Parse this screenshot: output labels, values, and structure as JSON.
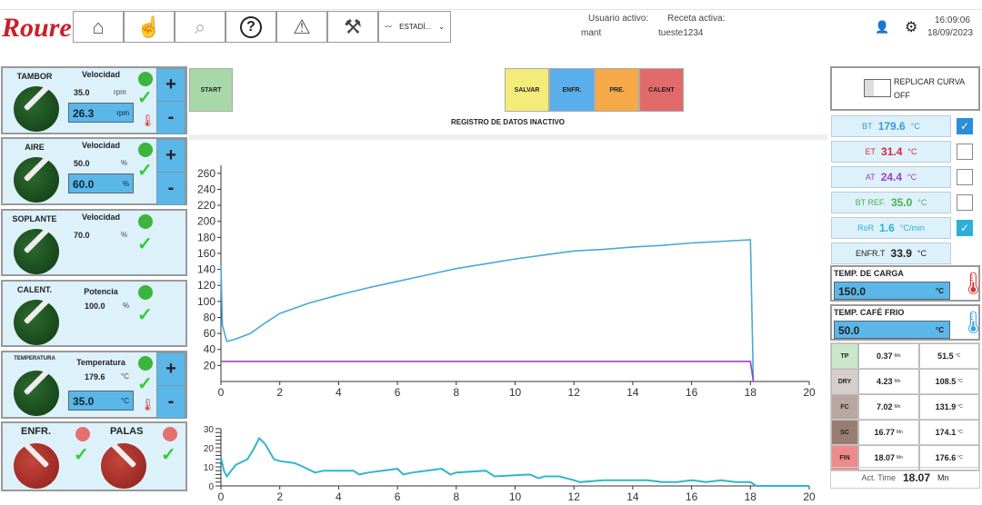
{
  "header": {
    "logo": "Roure",
    "dropdown": "ESTADÍ...",
    "user_label": "Usuario activo:",
    "user": "mant",
    "recipe_label": "Receta activa:",
    "recipe": "tueste1234",
    "time": "16:09:06",
    "date": "18/09/2023"
  },
  "panels": [
    {
      "name": "TAMBOR",
      "title": "Velocidad",
      "value": "35.0",
      "unit": "rpm",
      "setpoint": "26.3",
      "set_unit": "rpm"
    },
    {
      "name": "AIRE",
      "title": "Velocidad",
      "value": "50.0",
      "unit": "%",
      "setpoint": "60.0",
      "set_unit": "%"
    },
    {
      "name": "SOPLANTE",
      "title": "Velocidad",
      "value": "70.0",
      "unit": "%"
    },
    {
      "name": "CALENT.",
      "title": "Potencia",
      "value": "100.0",
      "unit": "%"
    },
    {
      "name": "TEMPERATURA",
      "title": "Temperatura",
      "value": "179.6",
      "unit": "°C",
      "setpoint": "35.0",
      "set_unit": "°C"
    }
  ],
  "bottom_panel": {
    "enfr": "ENFR.",
    "palas": "PALAS"
  },
  "plus": "+",
  "minus": "-",
  "controls": {
    "start": "START",
    "salvar": "SALVAR",
    "enfr": "ENFR.",
    "pre": "PRE.",
    "calent": "CALENT"
  },
  "status": "REGISTRO DE DATOS INACTIVO",
  "replicar": {
    "label": "REPLICAR CURVA",
    "state": "OFF"
  },
  "readings": [
    {
      "label": "BT",
      "value": "179.6",
      "unit": "°C",
      "color": "#3a9ad9",
      "checked": true
    },
    {
      "label": "ET",
      "value": "31.4",
      "unit": "°C",
      "color": "#d8283c",
      "checked": false
    },
    {
      "label": "AT",
      "value": "24.4",
      "unit": "°C",
      "color": "#9b3fc0",
      "checked": false
    },
    {
      "label": "BT REF.",
      "value": "35.0",
      "unit": "°C",
      "color": "#4caf50",
      "checked": false
    },
    {
      "label": "RoR",
      "value": "1.6",
      "unit": "°C/min",
      "color": "#2cb0d8",
      "checked": true
    },
    {
      "label": "ENFR.T",
      "value": "33.9",
      "unit": "°C",
      "color": "#222"
    }
  ],
  "carga": {
    "label": "TEMP. DE CARGA",
    "value": "150.0",
    "unit": "°C"
  },
  "frio": {
    "label": "TEMP. CAFÉ FRIO",
    "value": "50.0",
    "unit": "°C"
  },
  "events": [
    {
      "key": "TP",
      "time": "0.37",
      "tunit": "Mn",
      "temp": "51.5",
      "unit": "°C",
      "color": "#c9e8c9"
    },
    {
      "key": "DRY",
      "time": "4.23",
      "tunit": "Mn",
      "temp": "108.5",
      "unit": "°C",
      "color": "#d6cdcd"
    },
    {
      "key": "FC",
      "time": "7.02",
      "tunit": "Mn",
      "temp": "131.9",
      "unit": "°C",
      "color": "#b9a6a0"
    },
    {
      "key": "SC",
      "time": "16.77",
      "tunit": "Mn",
      "temp": "174.1",
      "unit": "°C",
      "color": "#9a7d72"
    },
    {
      "key": "FIN",
      "time": "18.07",
      "tunit": "Mn",
      "temp": "176.6",
      "unit": "°C",
      "color": "#ee8a8a"
    }
  ],
  "act_time": {
    "label": "Act. Time",
    "value": "18.07",
    "unit": "Mn"
  },
  "chart_data": [
    {
      "type": "line",
      "xlim": [
        0,
        20
      ],
      "ylim": [
        0,
        270
      ],
      "xticks": [
        0,
        2,
        4,
        6,
        8,
        10,
        12,
        14,
        16,
        18,
        20
      ],
      "yticks": [
        20,
        40,
        60,
        80,
        100,
        120,
        140,
        160,
        180,
        200,
        220,
        240,
        260
      ],
      "series": [
        {
          "name": "BT",
          "color": "#4aa8d8",
          "x": [
            0,
            0.05,
            0.2,
            0.5,
            1,
            1.5,
            2,
            3,
            4,
            5,
            6,
            7,
            8,
            9,
            10,
            11,
            12,
            13,
            14,
            15,
            16,
            17,
            18,
            18.1
          ],
          "y": [
            145,
            70,
            50,
            53,
            60,
            73,
            85,
            98,
            108,
            117,
            125,
            133,
            141,
            147,
            153,
            158,
            163,
            165,
            168,
            170,
            173,
            175,
            177,
            0
          ]
        },
        {
          "name": "AT",
          "color": "#a040c0",
          "x": [
            0,
            18,
            18.1
          ],
          "y": [
            25,
            25,
            0
          ]
        }
      ]
    },
    {
      "type": "line",
      "xlim": [
        0,
        20
      ],
      "ylim": [
        0,
        30
      ],
      "xticks": [
        0,
        2,
        4,
        6,
        8,
        10,
        12,
        14,
        16,
        18,
        20
      ],
      "series": [
        {
          "name": "RoR",
          "color": "#2cb8cc",
          "x": [
            0,
            0.1,
            0.2,
            0.5,
            0.9,
            1.1,
            1.3,
            1.5,
            1.8,
            2,
            2.5,
            2.8,
            3.2,
            3.5,
            4,
            4.5,
            4.7,
            5,
            6,
            6.2,
            6.5,
            7.5,
            7.8,
            8,
            9,
            9.3,
            10.5,
            10.8,
            11,
            11.5,
            12,
            12.2,
            13,
            13.5,
            14.5,
            15,
            15.5,
            16,
            16.5,
            17,
            17.5,
            18,
            18.2,
            20
          ],
          "y": [
            15,
            8,
            5,
            11,
            14,
            19,
            25,
            22,
            14,
            13,
            12,
            10,
            7,
            8,
            8,
            8,
            6,
            7,
            9,
            6,
            7,
            9,
            6,
            7,
            8,
            5,
            6,
            4,
            5,
            5,
            3,
            2,
            3,
            3,
            3,
            2,
            2,
            3,
            2,
            3,
            2,
            2,
            0,
            0
          ]
        }
      ]
    }
  ]
}
